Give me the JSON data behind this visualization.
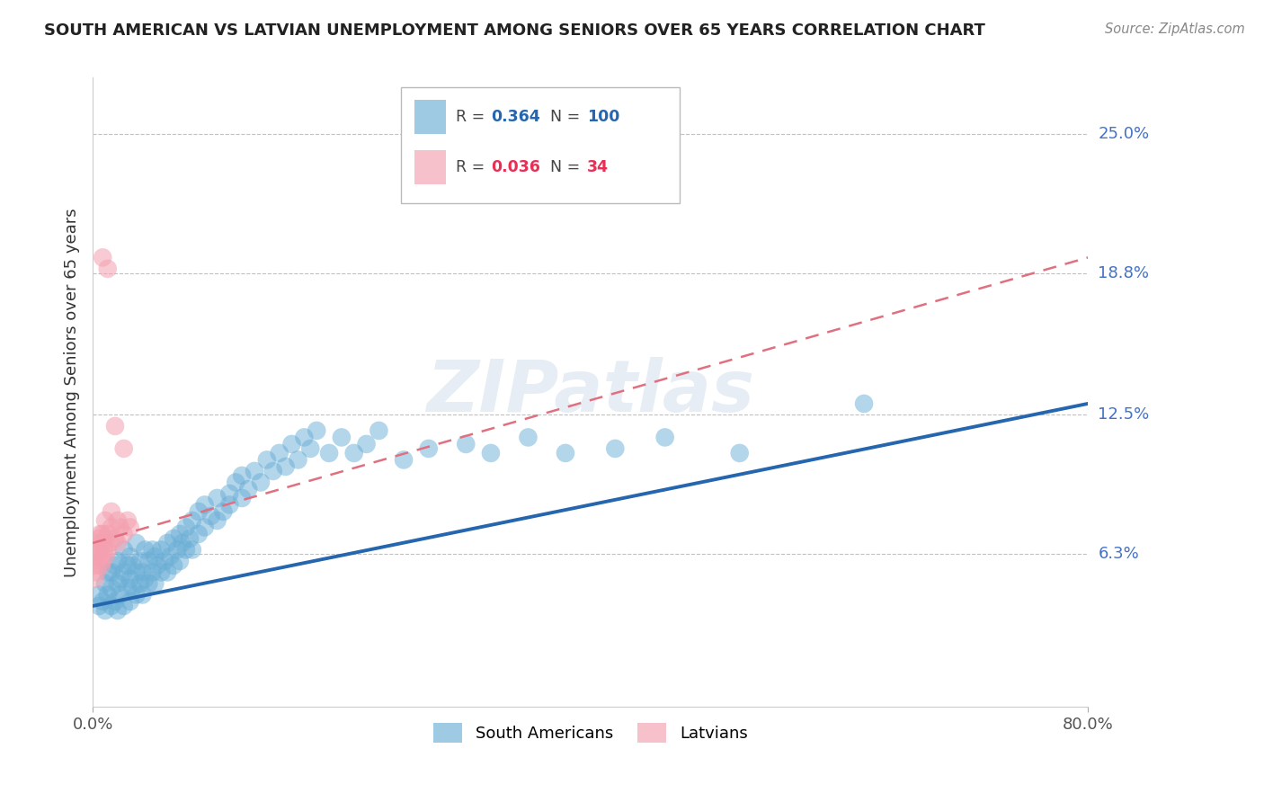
{
  "title": "SOUTH AMERICAN VS LATVIAN UNEMPLOYMENT AMONG SENIORS OVER 65 YEARS CORRELATION CHART",
  "source": "Source: ZipAtlas.com",
  "ylabel": "Unemployment Among Seniors over 65 years",
  "xlim": [
    0.0,
    0.8
  ],
  "ylim": [
    -0.005,
    0.275
  ],
  "y_ticks": [
    0.063,
    0.125,
    0.188,
    0.25
  ],
  "y_tick_labels": [
    "6.3%",
    "12.5%",
    "18.8%",
    "25.0%"
  ],
  "x_ticks": [
    0.0,
    0.8
  ],
  "x_tick_labels": [
    "0.0%",
    "80.0%"
  ],
  "legend_blue_R": "0.364",
  "legend_blue_N": "100",
  "legend_pink_R": "0.036",
  "legend_pink_N": "34",
  "blue_color": "#6AAED6",
  "pink_color": "#F4A0B0",
  "blue_line_color": "#2566AE",
  "pink_line_color": "#E07080",
  "watermark": "ZIPatlas",
  "background_color": "#FFFFFF",
  "sa_x": [
    0.005,
    0.005,
    0.008,
    0.01,
    0.01,
    0.012,
    0.012,
    0.015,
    0.015,
    0.015,
    0.018,
    0.018,
    0.02,
    0.02,
    0.02,
    0.022,
    0.022,
    0.025,
    0.025,
    0.025,
    0.028,
    0.028,
    0.03,
    0.03,
    0.03,
    0.032,
    0.032,
    0.035,
    0.035,
    0.035,
    0.038,
    0.038,
    0.04,
    0.04,
    0.042,
    0.042,
    0.045,
    0.045,
    0.048,
    0.048,
    0.05,
    0.05,
    0.052,
    0.055,
    0.055,
    0.058,
    0.06,
    0.06,
    0.062,
    0.065,
    0.065,
    0.068,
    0.07,
    0.07,
    0.072,
    0.075,
    0.075,
    0.078,
    0.08,
    0.08,
    0.085,
    0.085,
    0.09,
    0.09,
    0.095,
    0.1,
    0.1,
    0.105,
    0.11,
    0.11,
    0.115,
    0.12,
    0.12,
    0.125,
    0.13,
    0.135,
    0.14,
    0.145,
    0.15,
    0.155,
    0.16,
    0.165,
    0.17,
    0.175,
    0.18,
    0.19,
    0.2,
    0.21,
    0.22,
    0.23,
    0.25,
    0.27,
    0.3,
    0.32,
    0.35,
    0.38,
    0.42,
    0.46,
    0.52,
    0.62
  ],
  "sa_y": [
    0.04,
    0.045,
    0.042,
    0.038,
    0.05,
    0.055,
    0.045,
    0.04,
    0.048,
    0.055,
    0.042,
    0.058,
    0.038,
    0.05,
    0.06,
    0.045,
    0.052,
    0.04,
    0.055,
    0.065,
    0.048,
    0.058,
    0.042,
    0.052,
    0.062,
    0.048,
    0.058,
    0.045,
    0.055,
    0.068,
    0.05,
    0.06,
    0.045,
    0.055,
    0.052,
    0.065,
    0.05,
    0.06,
    0.055,
    0.065,
    0.05,
    0.062,
    0.058,
    0.055,
    0.065,
    0.06,
    0.055,
    0.068,
    0.062,
    0.058,
    0.07,
    0.065,
    0.06,
    0.072,
    0.068,
    0.065,
    0.075,
    0.07,
    0.065,
    0.078,
    0.072,
    0.082,
    0.075,
    0.085,
    0.08,
    0.078,
    0.088,
    0.082,
    0.09,
    0.085,
    0.095,
    0.088,
    0.098,
    0.092,
    0.1,
    0.095,
    0.105,
    0.1,
    0.108,
    0.102,
    0.112,
    0.105,
    0.115,
    0.11,
    0.118,
    0.108,
    0.115,
    0.108,
    0.112,
    0.118,
    0.105,
    0.11,
    0.112,
    0.108,
    0.115,
    0.108,
    0.11,
    0.115,
    0.108,
    0.13
  ],
  "lv_x": [
    0.002,
    0.002,
    0.003,
    0.003,
    0.004,
    0.004,
    0.005,
    0.005,
    0.006,
    0.006,
    0.007,
    0.007,
    0.008,
    0.008,
    0.009,
    0.01,
    0.01,
    0.01,
    0.012,
    0.012,
    0.014,
    0.015,
    0.015,
    0.018,
    0.02,
    0.02,
    0.022,
    0.025,
    0.028,
    0.03,
    0.008,
    0.012,
    0.018,
    0.025
  ],
  "lv_y": [
    0.052,
    0.058,
    0.055,
    0.065,
    0.06,
    0.068,
    0.062,
    0.07,
    0.065,
    0.072,
    0.058,
    0.068,
    0.06,
    0.072,
    0.065,
    0.062,
    0.07,
    0.078,
    0.065,
    0.072,
    0.068,
    0.075,
    0.082,
    0.07,
    0.068,
    0.078,
    0.075,
    0.072,
    0.078,
    0.075,
    0.195,
    0.19,
    0.12,
    0.11
  ],
  "blue_line_x": [
    0.0,
    0.8
  ],
  "blue_line_y": [
    0.04,
    0.13
  ],
  "pink_line_x": [
    0.0,
    0.8
  ],
  "pink_line_y": [
    0.068,
    0.195
  ]
}
